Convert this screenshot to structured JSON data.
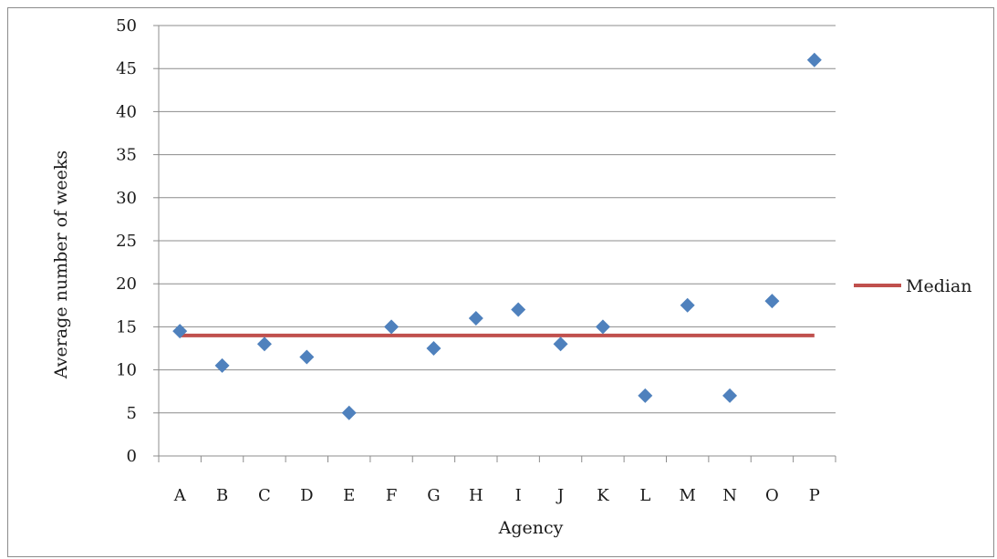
{
  "chart_data": {
    "type": "scatter",
    "xlabel": "Agency",
    "ylabel": "Average number of weeks",
    "ylim": [
      0,
      50
    ],
    "yticks": [
      "0",
      "5",
      "10",
      "15",
      "20",
      "25",
      "30",
      "35",
      "40",
      "45",
      "50"
    ],
    "categories": [
      "A",
      "B",
      "C",
      "D",
      "E",
      "F",
      "G",
      "H",
      "I",
      "J",
      "K",
      "L",
      "M",
      "N",
      "O",
      "P"
    ],
    "values": [
      14.5,
      10.5,
      13,
      11.5,
      5,
      15,
      12.5,
      16,
      17,
      13,
      15,
      7,
      17.5,
      7,
      18,
      46
    ],
    "median": {
      "name": "Median",
      "value": 14
    },
    "grid": true,
    "legend_position": "right",
    "colors": {
      "points": "#4f81bd",
      "median": "#c0504d",
      "grid": "#8c8c8c"
    }
  }
}
